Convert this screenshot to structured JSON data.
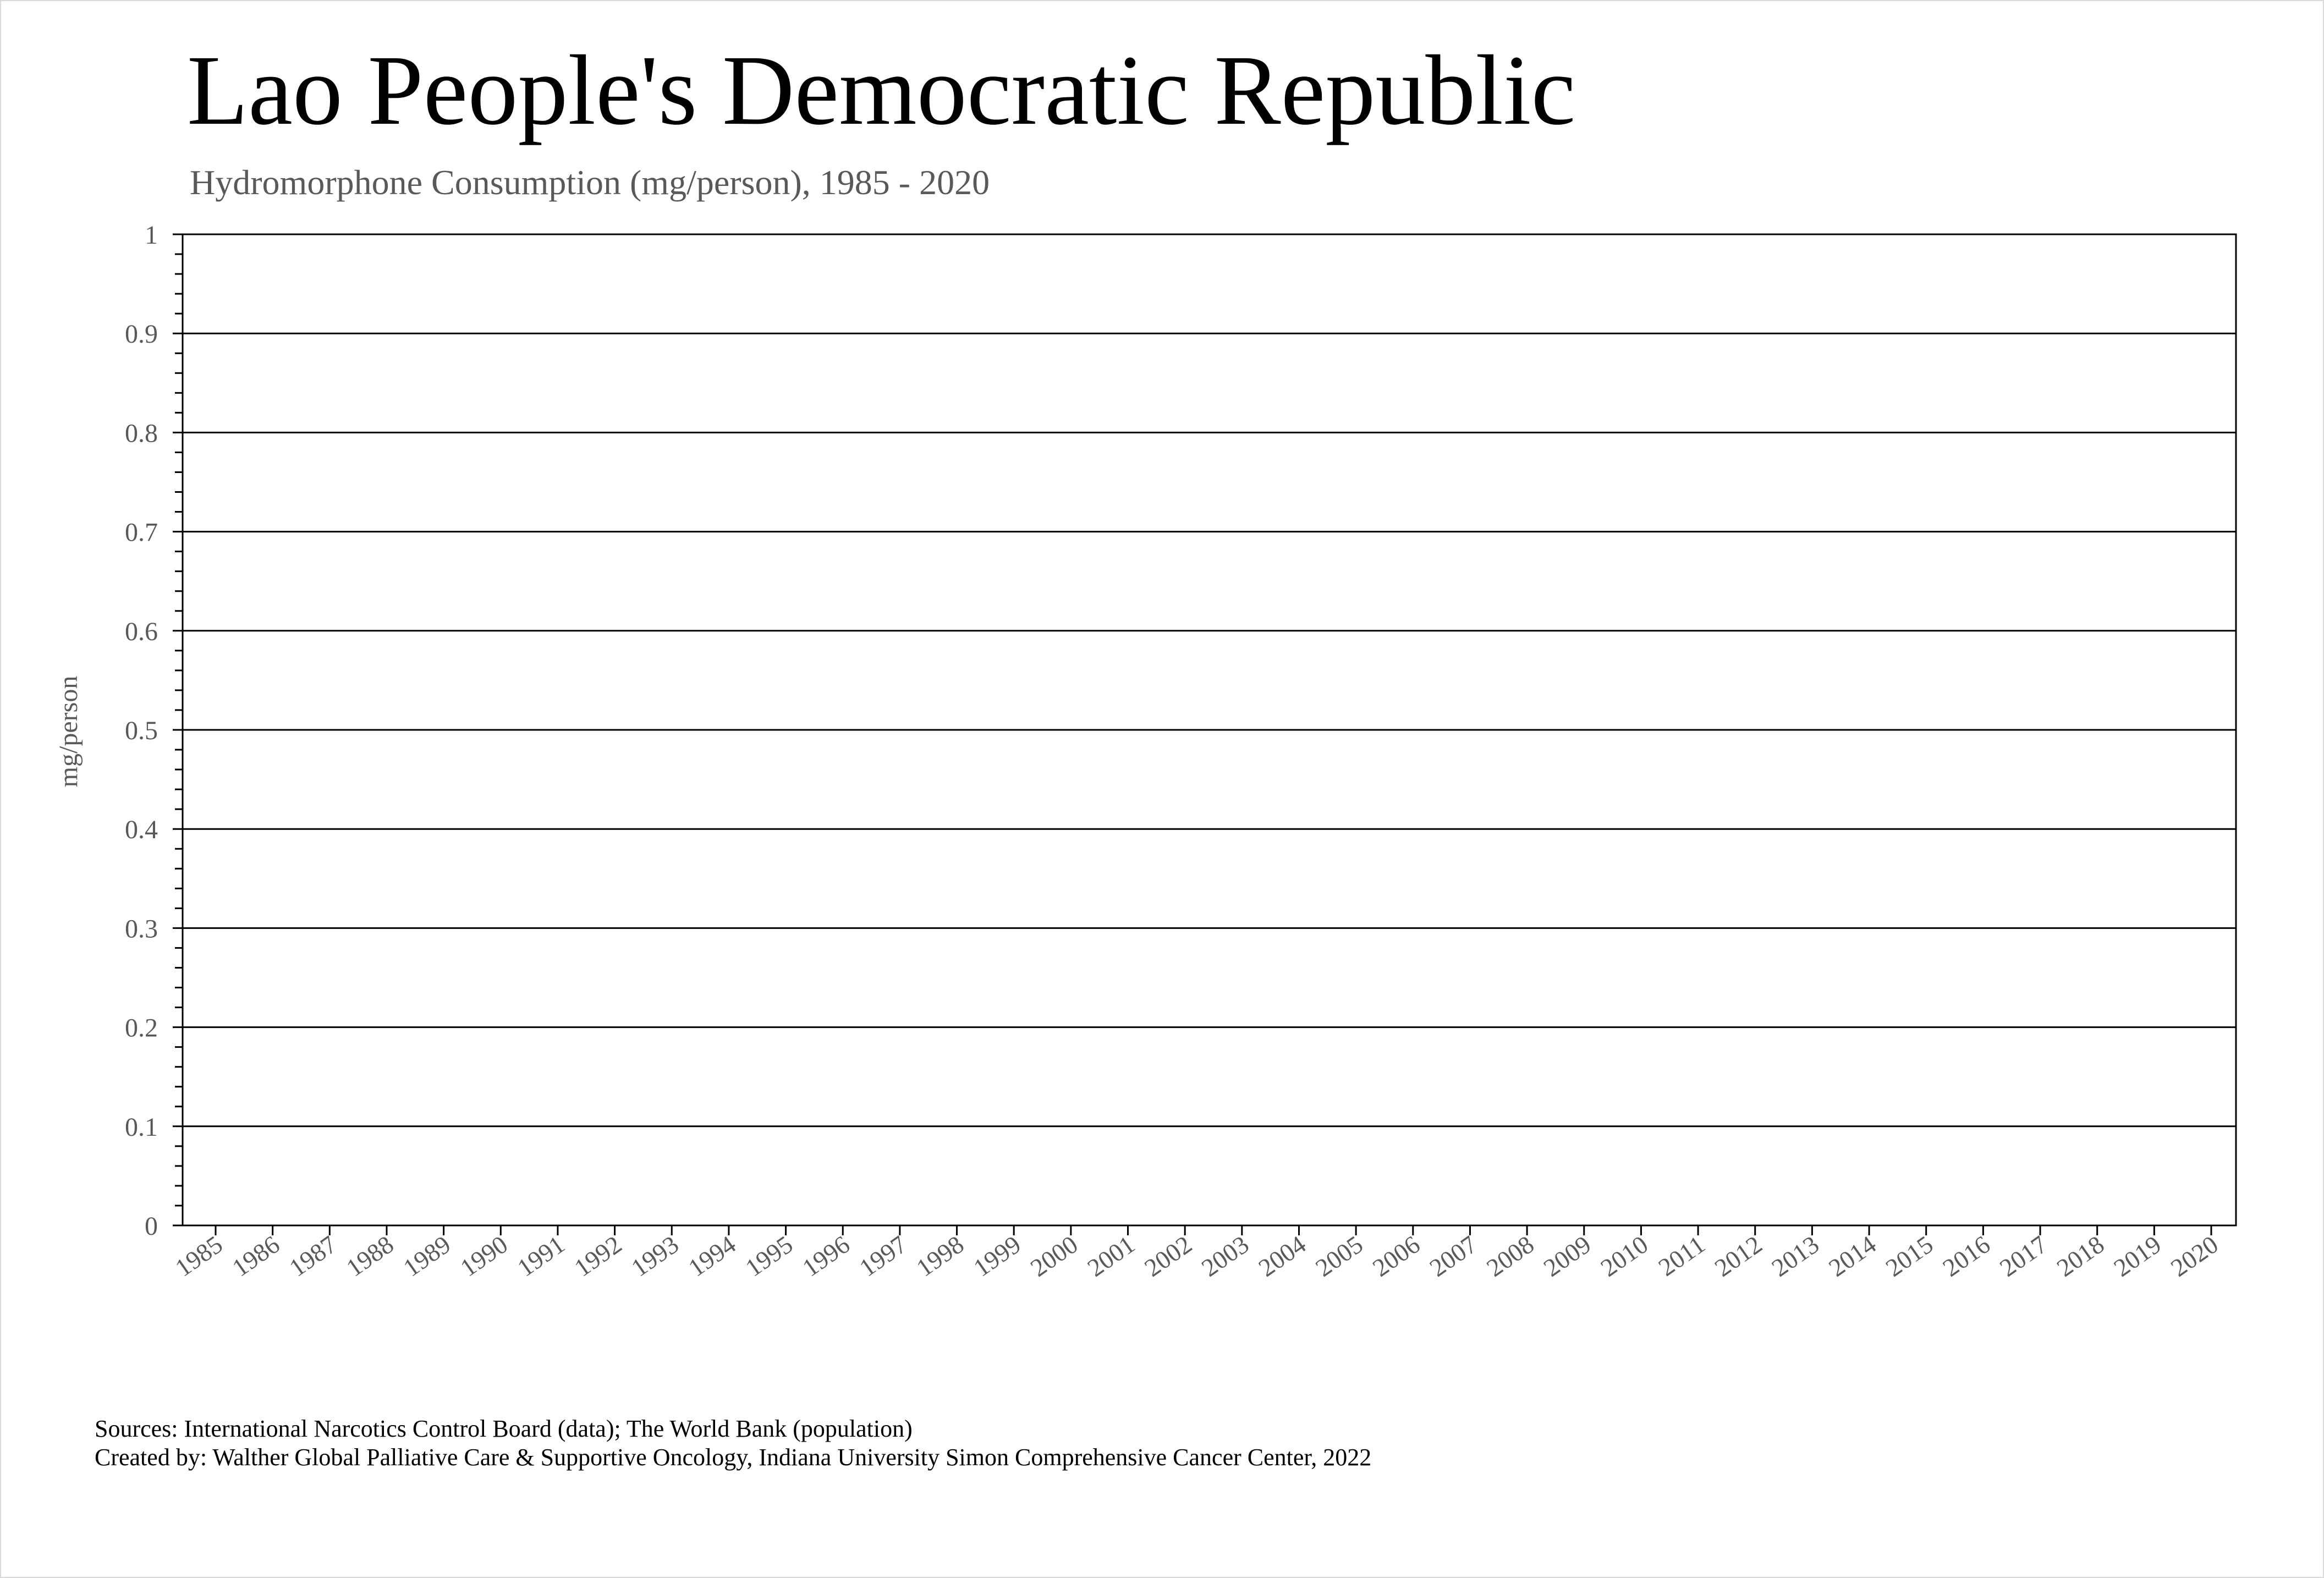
{
  "chart_data": {
    "type": "line",
    "title": "Lao People's Democratic Republic",
    "subtitle": "Hydromorphone Consumption (mg/person), 1985 - 2020",
    "xlabel": "",
    "ylabel": "mg/person",
    "ylim": [
      0,
      1
    ],
    "y_ticks": [
      "0",
      "0.1",
      "0.2",
      "0.3",
      "0.4",
      "0.5",
      "0.6",
      "0.7",
      "0.8",
      "0.9",
      "1"
    ],
    "categories": [
      "1985",
      "1986",
      "1987",
      "1988",
      "1989",
      "1990",
      "1991",
      "1992",
      "1993",
      "1994",
      "1995",
      "1996",
      "1997",
      "1998",
      "1999",
      "2000",
      "2001",
      "2002",
      "2003",
      "2004",
      "2005",
      "2006",
      "2007",
      "2008",
      "2009",
      "2010",
      "2011",
      "2012",
      "2013",
      "2014",
      "2015",
      "2016",
      "2017",
      "2018",
      "2019",
      "2020"
    ],
    "series": [],
    "grid": true,
    "legend": "none"
  },
  "footer": {
    "sources": "Sources: International Narcotics Control Board (data); The World Bank (population)",
    "created_by": "Created by: Walther Global Palliative Care & Supportive Oncology, Indiana University Simon Comprehensive Cancer Center, 2022"
  },
  "colors": {
    "title": "#000000",
    "subtitle": "#595959",
    "axis_text": "#595959",
    "grid": "#000000",
    "frame_border": "#d9d9d9"
  }
}
